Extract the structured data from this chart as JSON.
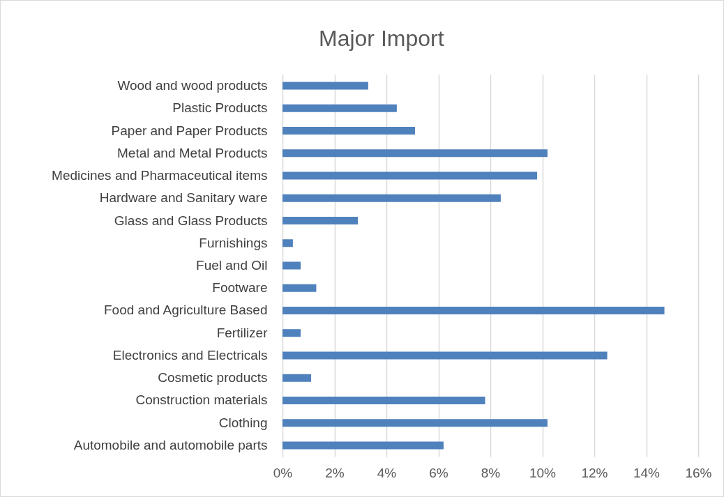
{
  "chart_data": {
    "type": "bar",
    "orientation": "horizontal",
    "title": "Major Import",
    "categories": [
      "Wood and wood products",
      "Plastic Products",
      "Paper and Paper Products",
      "Metal and Metal Products",
      "Medicines and Pharmaceutical items",
      "Hardware and Sanitary ware",
      "Glass and Glass Products",
      "Furnishings",
      "Fuel and Oil",
      "Footware",
      "Food and Agriculture Based",
      "Fertilizer",
      "Electronics and Electricals",
      "Cosmetic products",
      "Construction materials",
      "Clothing",
      "Automobile and automobile parts"
    ],
    "values": [
      3.3,
      4.4,
      5.1,
      10.2,
      9.8,
      8.4,
      2.9,
      0.4,
      0.7,
      1.3,
      14.7,
      0.7,
      12.5,
      1.1,
      7.8,
      10.2,
      6.2
    ],
    "color": "#4f81bd",
    "xlim": [
      0,
      16
    ],
    "xticks": [
      {
        "value": 0,
        "label": "0%"
      },
      {
        "value": 2,
        "label": "2%"
      },
      {
        "value": 4,
        "label": "4%"
      },
      {
        "value": 6,
        "label": "6%"
      },
      {
        "value": 8,
        "label": "8%"
      },
      {
        "value": 10,
        "label": "10%"
      },
      {
        "value": 12,
        "label": "12%"
      },
      {
        "value": 14,
        "label": "14%"
      },
      {
        "value": 16,
        "label": "16%"
      }
    ],
    "grid": "x"
  }
}
